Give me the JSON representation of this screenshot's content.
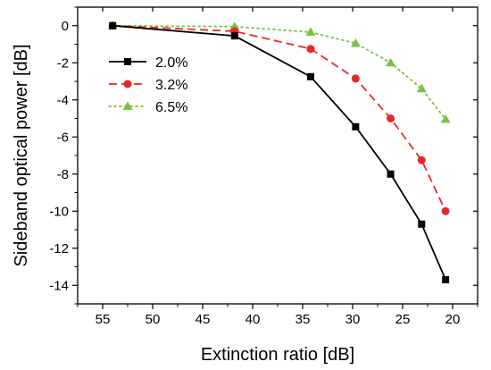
{
  "chart_data": {
    "type": "line",
    "xlabel": "Extinction ratio [dB]",
    "ylabel": "Sideband optical power [dB]",
    "xlim": [
      57.5,
      17.5
    ],
    "ylim": [
      -15,
      1
    ],
    "x_reversed": true,
    "x_ticks": [
      55,
      50,
      45,
      40,
      35,
      30,
      25,
      20
    ],
    "y_ticks": [
      0,
      -2,
      -4,
      -6,
      -8,
      -10,
      -12,
      -14
    ],
    "grid": false,
    "legend_position": "top-left",
    "series": [
      {
        "name": "2.0%",
        "color": "#000000",
        "marker": "square",
        "line_style": "solid",
        "x": [
          54,
          41.8,
          34.2,
          29.7,
          26.2,
          23.1,
          20.7
        ],
        "y": [
          0,
          -0.55,
          -2.75,
          -5.45,
          -8.0,
          -10.7,
          -13.7
        ]
      },
      {
        "name": "3.2%",
        "color": "#e8262b",
        "marker": "circle",
        "line_style": "dashed",
        "x": [
          54,
          41.8,
          34.2,
          29.7,
          26.2,
          23.1,
          20.7
        ],
        "y": [
          0,
          -0.3,
          -1.25,
          -2.85,
          -5.0,
          -7.25,
          -10.0
        ]
      },
      {
        "name": "6.5%",
        "color": "#7cc242",
        "marker": "triangle",
        "line_style": "dotted",
        "x": [
          54,
          41.8,
          34.2,
          29.7,
          26.2,
          23.1,
          20.7
        ],
        "y": [
          0,
          -0.05,
          -0.35,
          -0.95,
          -2.0,
          -3.4,
          -5.05
        ]
      }
    ]
  }
}
